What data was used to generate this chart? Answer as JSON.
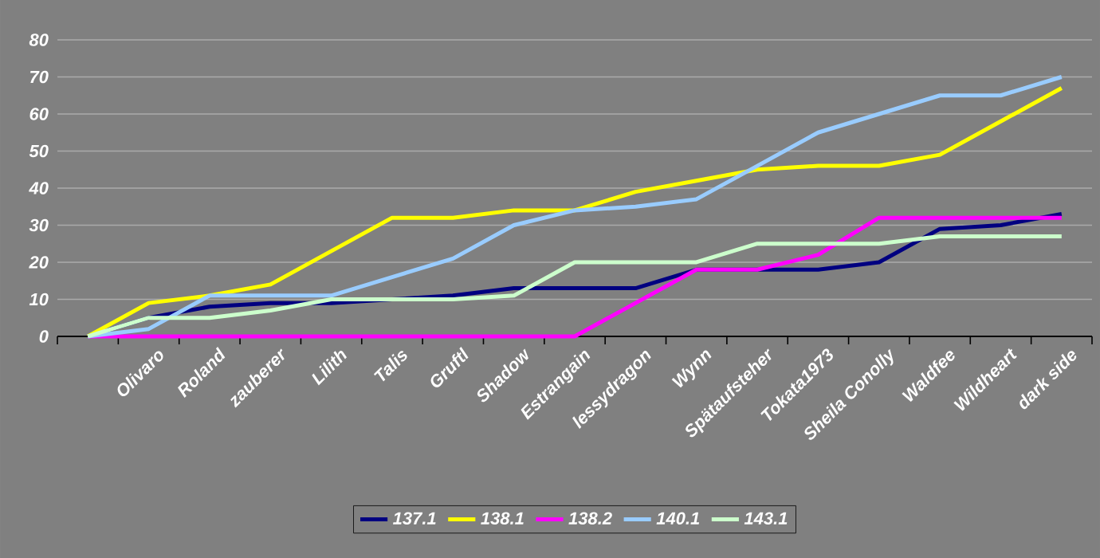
{
  "chart_data": {
    "type": "line",
    "categories": [
      null,
      "Olivaro",
      "Roland",
      "zauberer",
      "Lilith",
      "Talis",
      "Gruftl",
      "Shadow",
      "Estrangain",
      "lessydragon",
      "Wynn",
      "Spätaufsteher",
      "Tokata1973",
      "Sheila Conolly",
      "Waldfee",
      "Wildheart",
      "dark side"
    ],
    "series": [
      {
        "name": "137.1",
        "color": "#000080",
        "values": [
          0,
          5,
          8,
          9,
          9,
          10,
          11,
          13,
          13,
          13,
          18,
          18,
          18,
          20,
          29,
          30,
          33
        ]
      },
      {
        "name": "138.1",
        "color": "#ffff00",
        "values": [
          0,
          9,
          11,
          14,
          23,
          32,
          32,
          34,
          34,
          39,
          42,
          45,
          46,
          46,
          49,
          58,
          67
        ]
      },
      {
        "name": "138.2",
        "color": "#ff00ff",
        "values": [
          0,
          0,
          0,
          0,
          0,
          0,
          0,
          0,
          0,
          9,
          18,
          18,
          22,
          32,
          32,
          32,
          32
        ]
      },
      {
        "name": "140.1",
        "color": "#99ccff",
        "values": [
          0,
          2,
          11,
          11,
          11,
          16,
          21,
          30,
          34,
          35,
          37,
          46,
          55,
          60,
          65,
          65,
          70
        ]
      },
      {
        "name": "143.1",
        "color": "#ccffcc",
        "values": [
          0,
          5,
          5,
          7,
          10,
          10,
          10,
          11,
          20,
          20,
          20,
          25,
          25,
          25,
          27,
          27,
          27
        ]
      }
    ],
    "ylim": [
      0,
      80
    ],
    "yticks": [
      0,
      10,
      20,
      30,
      40,
      50,
      60,
      70,
      80
    ],
    "grid": "y",
    "legend": "bottom",
    "marker": "none",
    "line_style": "solid"
  }
}
